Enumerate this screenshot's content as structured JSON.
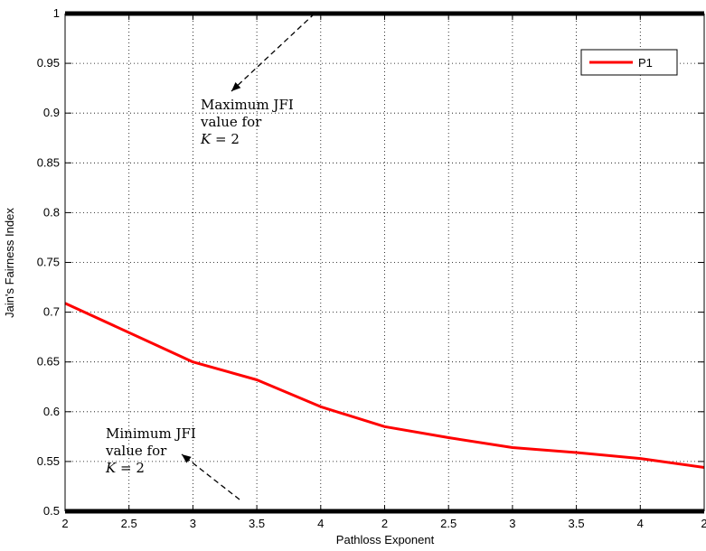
{
  "chart_data": {
    "type": "line",
    "xlabel": "Pathloss Exponent",
    "ylabel": "Jain's Fairness Index",
    "ylim": [
      0.5,
      1
    ],
    "x_tick_labels": [
      "2",
      "2.5",
      "3",
      "3.5",
      "4",
      "2",
      "2.5",
      "3",
      "3.5",
      "4",
      "2"
    ],
    "y_tick_labels": [
      "0.5",
      "0.55",
      "0.6",
      "0.65",
      "0.7",
      "0.75",
      "0.8",
      "0.85",
      "0.9",
      "0.95",
      "1"
    ],
    "grid": true,
    "legend_position": "top-right",
    "series": [
      {
        "name": "P1",
        "color": "#ff0000",
        "x_index": [
          0,
          2,
          3,
          4,
          5,
          6,
          7,
          8,
          9,
          10
        ],
        "values": [
          0.709,
          0.65,
          0.632,
          0.605,
          0.585,
          0.574,
          0.564,
          0.559,
          0.553,
          0.544
        ]
      }
    ],
    "annotations": [
      {
        "kind": "max",
        "lines": [
          "Maximum JFI",
          "value for"
        ],
        "math_var": "K",
        "math_rest": " = 2"
      },
      {
        "kind": "min",
        "lines": [
          "Minimum JFI",
          "value for"
        ],
        "math_var": "K",
        "math_rest": " = 2"
      }
    ]
  }
}
